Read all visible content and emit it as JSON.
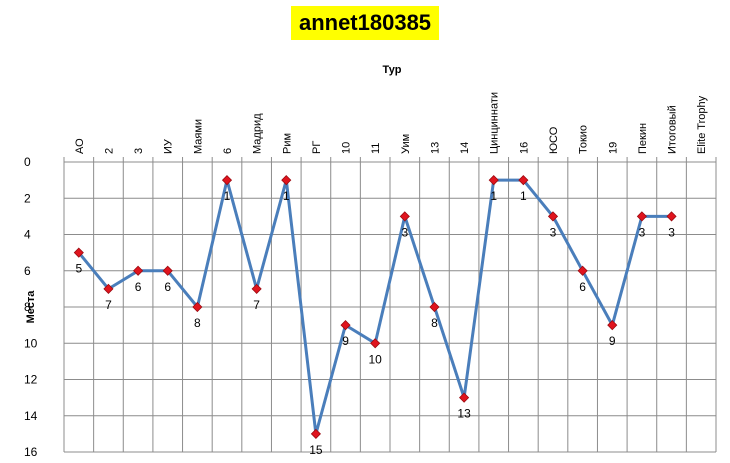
{
  "chart_data": {
    "type": "line",
    "title": "annet180385",
    "xlabel": "Тур",
    "ylabel": "Места",
    "categories": [
      "АО",
      "2",
      "3",
      "ИУ",
      "Маями",
      "6",
      "Мадрид",
      "Рим",
      "РГ",
      "10",
      "11",
      "Уим",
      "13",
      "14",
      "Цинциннати",
      "16",
      "ЮСО",
      "Токио",
      "19",
      "Пекин",
      "Итоговый",
      "Elite Trophy"
    ],
    "series": [
      {
        "values": [
          5,
          7,
          6,
          6,
          8,
          1,
          7,
          1,
          15,
          9,
          10,
          3,
          8,
          13,
          1,
          1,
          3,
          6,
          9,
          3,
          3,
          null
        ]
      }
    ],
    "ylim": [
      0,
      16
    ],
    "yticks": [
      0,
      2,
      4,
      6,
      8,
      10,
      12,
      14,
      16
    ],
    "y_inverted": true,
    "grid": true,
    "data_labels": true,
    "x_axis_position": "top",
    "line_color": "#4a7ebb",
    "marker_color": "#e0141e",
    "title_background": "#ffff00"
  }
}
